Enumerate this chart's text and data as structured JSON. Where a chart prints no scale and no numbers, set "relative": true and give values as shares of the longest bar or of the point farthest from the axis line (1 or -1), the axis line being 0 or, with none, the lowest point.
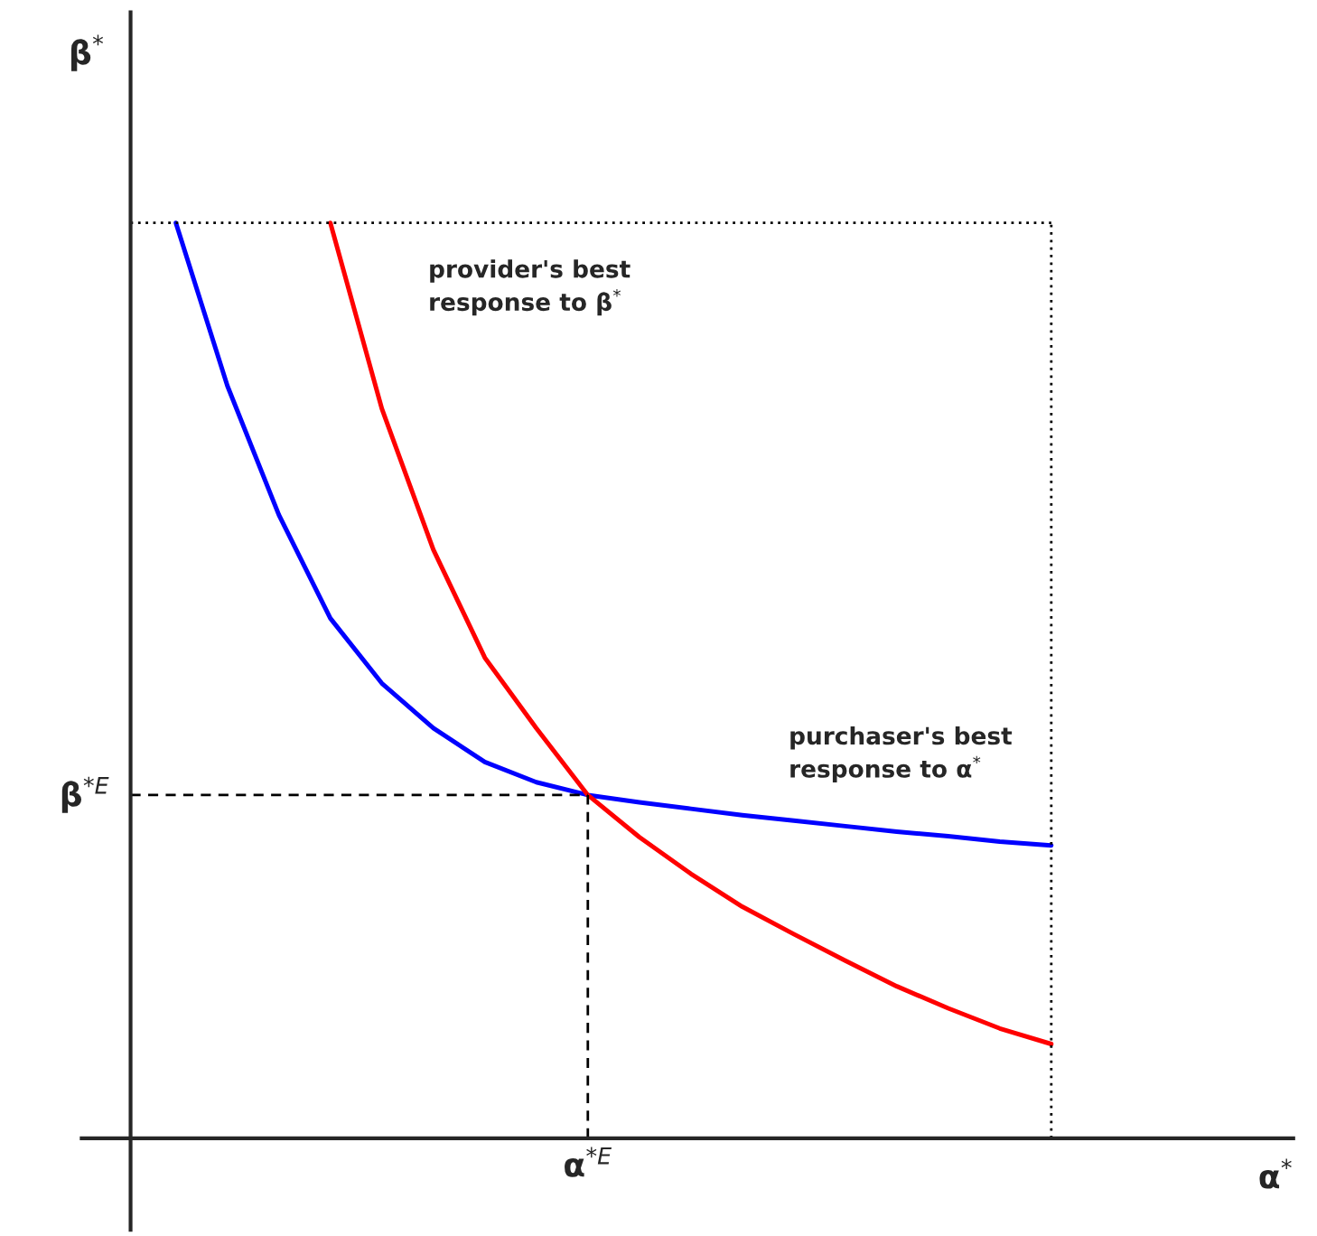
{
  "chart_data": {
    "type": "line",
    "relative": true,
    "ylabel": "β$^{*}$",
    "categories": [
      null,
      null,
      null,
      null,
      null,
      null,
      null,
      null,
      null,
      null,
      null,
      null,
      null,
      null,
      null,
      null,
      null,
      null
    ],
    "annotations": [
      "provider's best response to β$^{*}$",
      "purchaser's best response to α$^{*}$",
      "α$^{*E}$",
      "α$^{*}$"
    ],
    "series": [
      {
        "color": "#0000ff",
        "values": [
          1.0,
          0.822,
          0.681,
          0.568,
          0.497,
          0.448,
          0.411,
          0.389,
          0.375,
          0.367,
          0.36,
          0.353,
          0.347,
          0.341,
          0.335,
          0.33,
          0.324,
          0.32
        ]
      },
      {
        "color": "#ff0000",
        "values": [
          null,
          null,
          null,
          1.0,
          0.797,
          0.643,
          0.525,
          0.448,
          0.375,
          0.329,
          0.289,
          0.253,
          0.223,
          0.194,
          0.166,
          0.142,
          0.12,
          0.103
        ]
      }
    ],
    "ref_lines": [
      {
        "axis": "y",
        "value": 0.375,
        "label": "β$^{*E}$",
        "line_style": "dashed"
      },
      {
        "axis": "y",
        "value": 1.0,
        "line_style": "dotted"
      }
    ]
  }
}
